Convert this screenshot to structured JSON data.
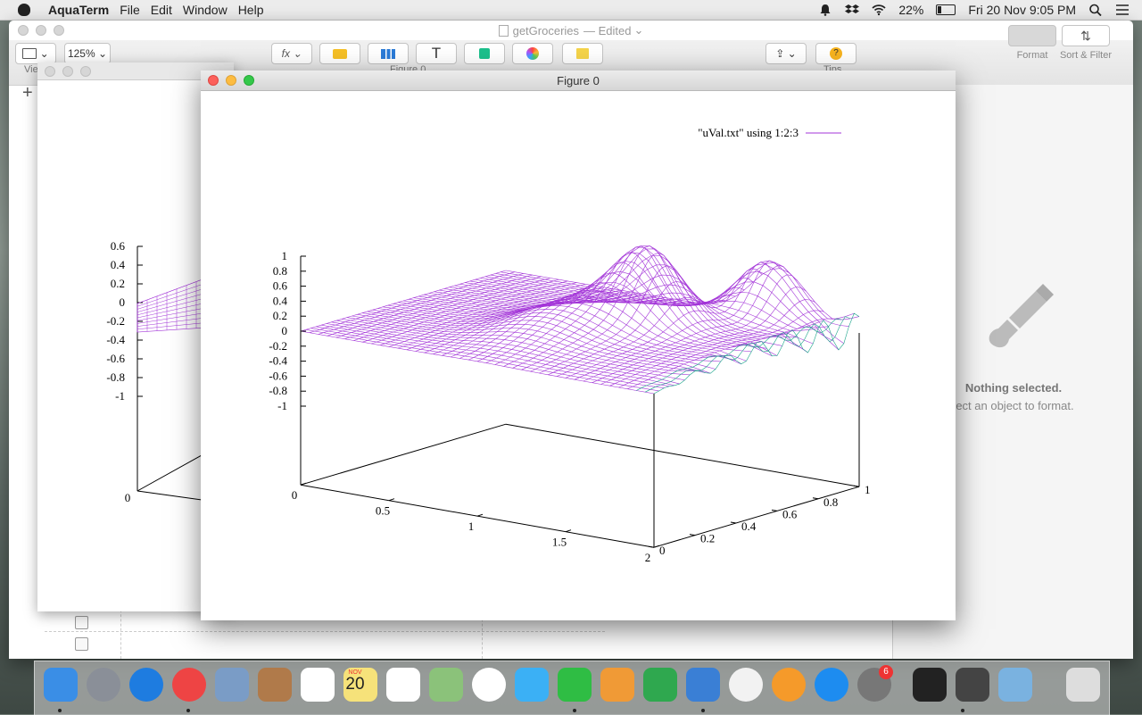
{
  "menubar": {
    "app": "AquaTerm",
    "items": [
      "File",
      "Edit",
      "Window",
      "Help"
    ],
    "battery": "22%",
    "battery_level": 0.22,
    "clock": "Fri 20 Nov  9:05 PM"
  },
  "numbers": {
    "title": "getGroceries",
    "status": "— Edited",
    "toolbar": {
      "view_label": "Vie",
      "zoom": "125%",
      "figure_label": "Figure 0",
      "tips_label": "Tips",
      "buttons": [
        "View",
        "Zoom",
        "Insert",
        "Table",
        "Chart",
        "Text",
        "Shape",
        "Media",
        "Comment",
        "Share",
        "Tips"
      ]
    },
    "add_sheet": "+",
    "inspector": {
      "tabs": [
        "Format",
        "Sort & Filter"
      ],
      "message": "Nothing selected.",
      "hint": "lect an object to format."
    }
  },
  "back_figure": {
    "z_ticks": [
      "0.6",
      "0.4",
      "0.2",
      "0",
      "-0.2",
      "-0.4",
      "-0.6",
      "-0.8",
      "-1"
    ],
    "origin": "0"
  },
  "figure": {
    "title": "Figure 0",
    "legend": "\"uVal.txt\" using 1:2:3",
    "colors": {
      "surface": "#a335d8",
      "surface_edge": "#1aa58a"
    },
    "z_ticks": [
      "1",
      "0.8",
      "0.6",
      "0.4",
      "0.2",
      "0",
      "-0.2",
      "-0.4",
      "-0.6",
      "-0.8",
      "-1"
    ],
    "x_ticks": [
      "0",
      "0.5",
      "1",
      "1.5",
      "2"
    ],
    "y_ticks": [
      "0",
      "0.2",
      "0.4",
      "0.6",
      "0.8",
      "1"
    ]
  },
  "dock": {
    "calendar": {
      "month": "NOV",
      "day": "20"
    },
    "appstore_badge": "6",
    "apps": [
      "finder-icon",
      "launchpad-icon",
      "safari-icon",
      "chrome-icon",
      "mail-icon",
      "contacts-icon",
      "calendar-icon",
      "notes-icon",
      "reminders-icon",
      "maps-icon",
      "photos-icon",
      "messages-icon",
      "facetime-icon",
      "pages-icon",
      "numbers-icon",
      "keynote-icon",
      "itunes-icon",
      "ibooks-icon",
      "appstore-icon",
      "preferences-icon",
      "terminal-icon",
      "sublime-icon",
      "preview-icon",
      "trash-icon"
    ]
  }
}
